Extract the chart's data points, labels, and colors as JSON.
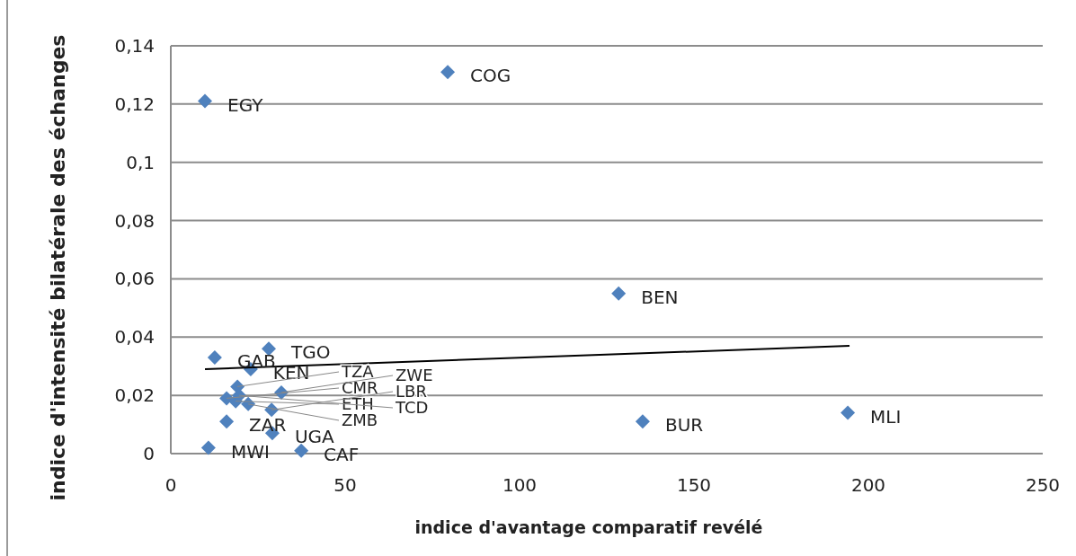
{
  "chart_data": {
    "type": "scatter",
    "xlabel": "indice d'avantage comparatif revélé",
    "ylabel": "indice d'intensité bilatérale des échanges",
    "xlim": [
      0,
      250
    ],
    "xticks": [
      0,
      50,
      100,
      150,
      200,
      250
    ],
    "ylim": [
      0,
      0.14
    ],
    "yticks": [
      {
        "value": 0,
        "label": "0"
      },
      {
        "value": 0.02,
        "label": "0,02"
      },
      {
        "value": 0.04,
        "label": "0,04"
      },
      {
        "value": 0.06,
        "label": "0,06"
      },
      {
        "value": 0.08,
        "label": "0,08"
      },
      {
        "value": 0.1,
        "label": "0,1"
      },
      {
        "value": 0.12,
        "label": "0,12"
      },
      {
        "value": 0.14,
        "label": "0,14"
      }
    ],
    "grid": "y",
    "series": [
      {
        "marker": "diamond",
        "color": "#4f81bd",
        "x": [
          9.8,
          79.4,
          128.4,
          135.3,
          194.1,
          28.1,
          12.6,
          22.9,
          19.1,
          16.0,
          18.6,
          22.2,
          31.7,
          28.9,
          19.6,
          16.0,
          29.1,
          10.8,
          37.4
        ],
        "values": [
          0.121,
          0.131,
          0.055,
          0.011,
          0.014,
          0.036,
          0.033,
          0.029,
          0.023,
          0.019,
          0.018,
          0.017,
          0.021,
          0.015,
          0.02,
          0.011,
          0.007,
          0.002,
          0.001
        ]
      },
      {
        "type": "line",
        "color": "#000000",
        "x": [
          9.8,
          194.6
        ],
        "values": [
          0.029,
          0.037
        ]
      }
    ],
    "annotations": [
      {
        "text": "EGY",
        "x": 9.8,
        "y": 0.121
      },
      {
        "text": "COG",
        "x": 79.4,
        "y": 0.131
      },
      {
        "text": "BEN",
        "x": 128.4,
        "y": 0.055
      },
      {
        "text": "BUR",
        "x": 135.3,
        "y": 0.011
      },
      {
        "text": "MLI",
        "x": 194.1,
        "y": 0.014
      },
      {
        "text": "TGO",
        "x": 28.1,
        "y": 0.036
      },
      {
        "text": "GAB",
        "x": 12.6,
        "y": 0.033
      },
      {
        "text": "KEN",
        "x": 22.9,
        "y": 0.029
      },
      {
        "text": "TZA",
        "x": 19.1,
        "y": 0.023
      },
      {
        "text": "CMR",
        "x": 16.0,
        "y": 0.019
      },
      {
        "text": "ETH",
        "x": 18.6,
        "y": 0.018
      },
      {
        "text": "ZMB",
        "x": 22.2,
        "y": 0.017
      },
      {
        "text": "ZWE",
        "x": 31.7,
        "y": 0.021
      },
      {
        "text": "LBR",
        "x": 28.9,
        "y": 0.015
      },
      {
        "text": "TCD",
        "x": 19.6,
        "y": 0.02
      },
      {
        "text": "ZAR",
        "x": 16.0,
        "y": 0.011
      },
      {
        "text": "UGA",
        "x": 29.1,
        "y": 0.007
      },
      {
        "text": "MWI",
        "x": 10.8,
        "y": 0.002
      },
      {
        "text": "CAF",
        "x": 37.4,
        "y": 0.001
      }
    ]
  }
}
